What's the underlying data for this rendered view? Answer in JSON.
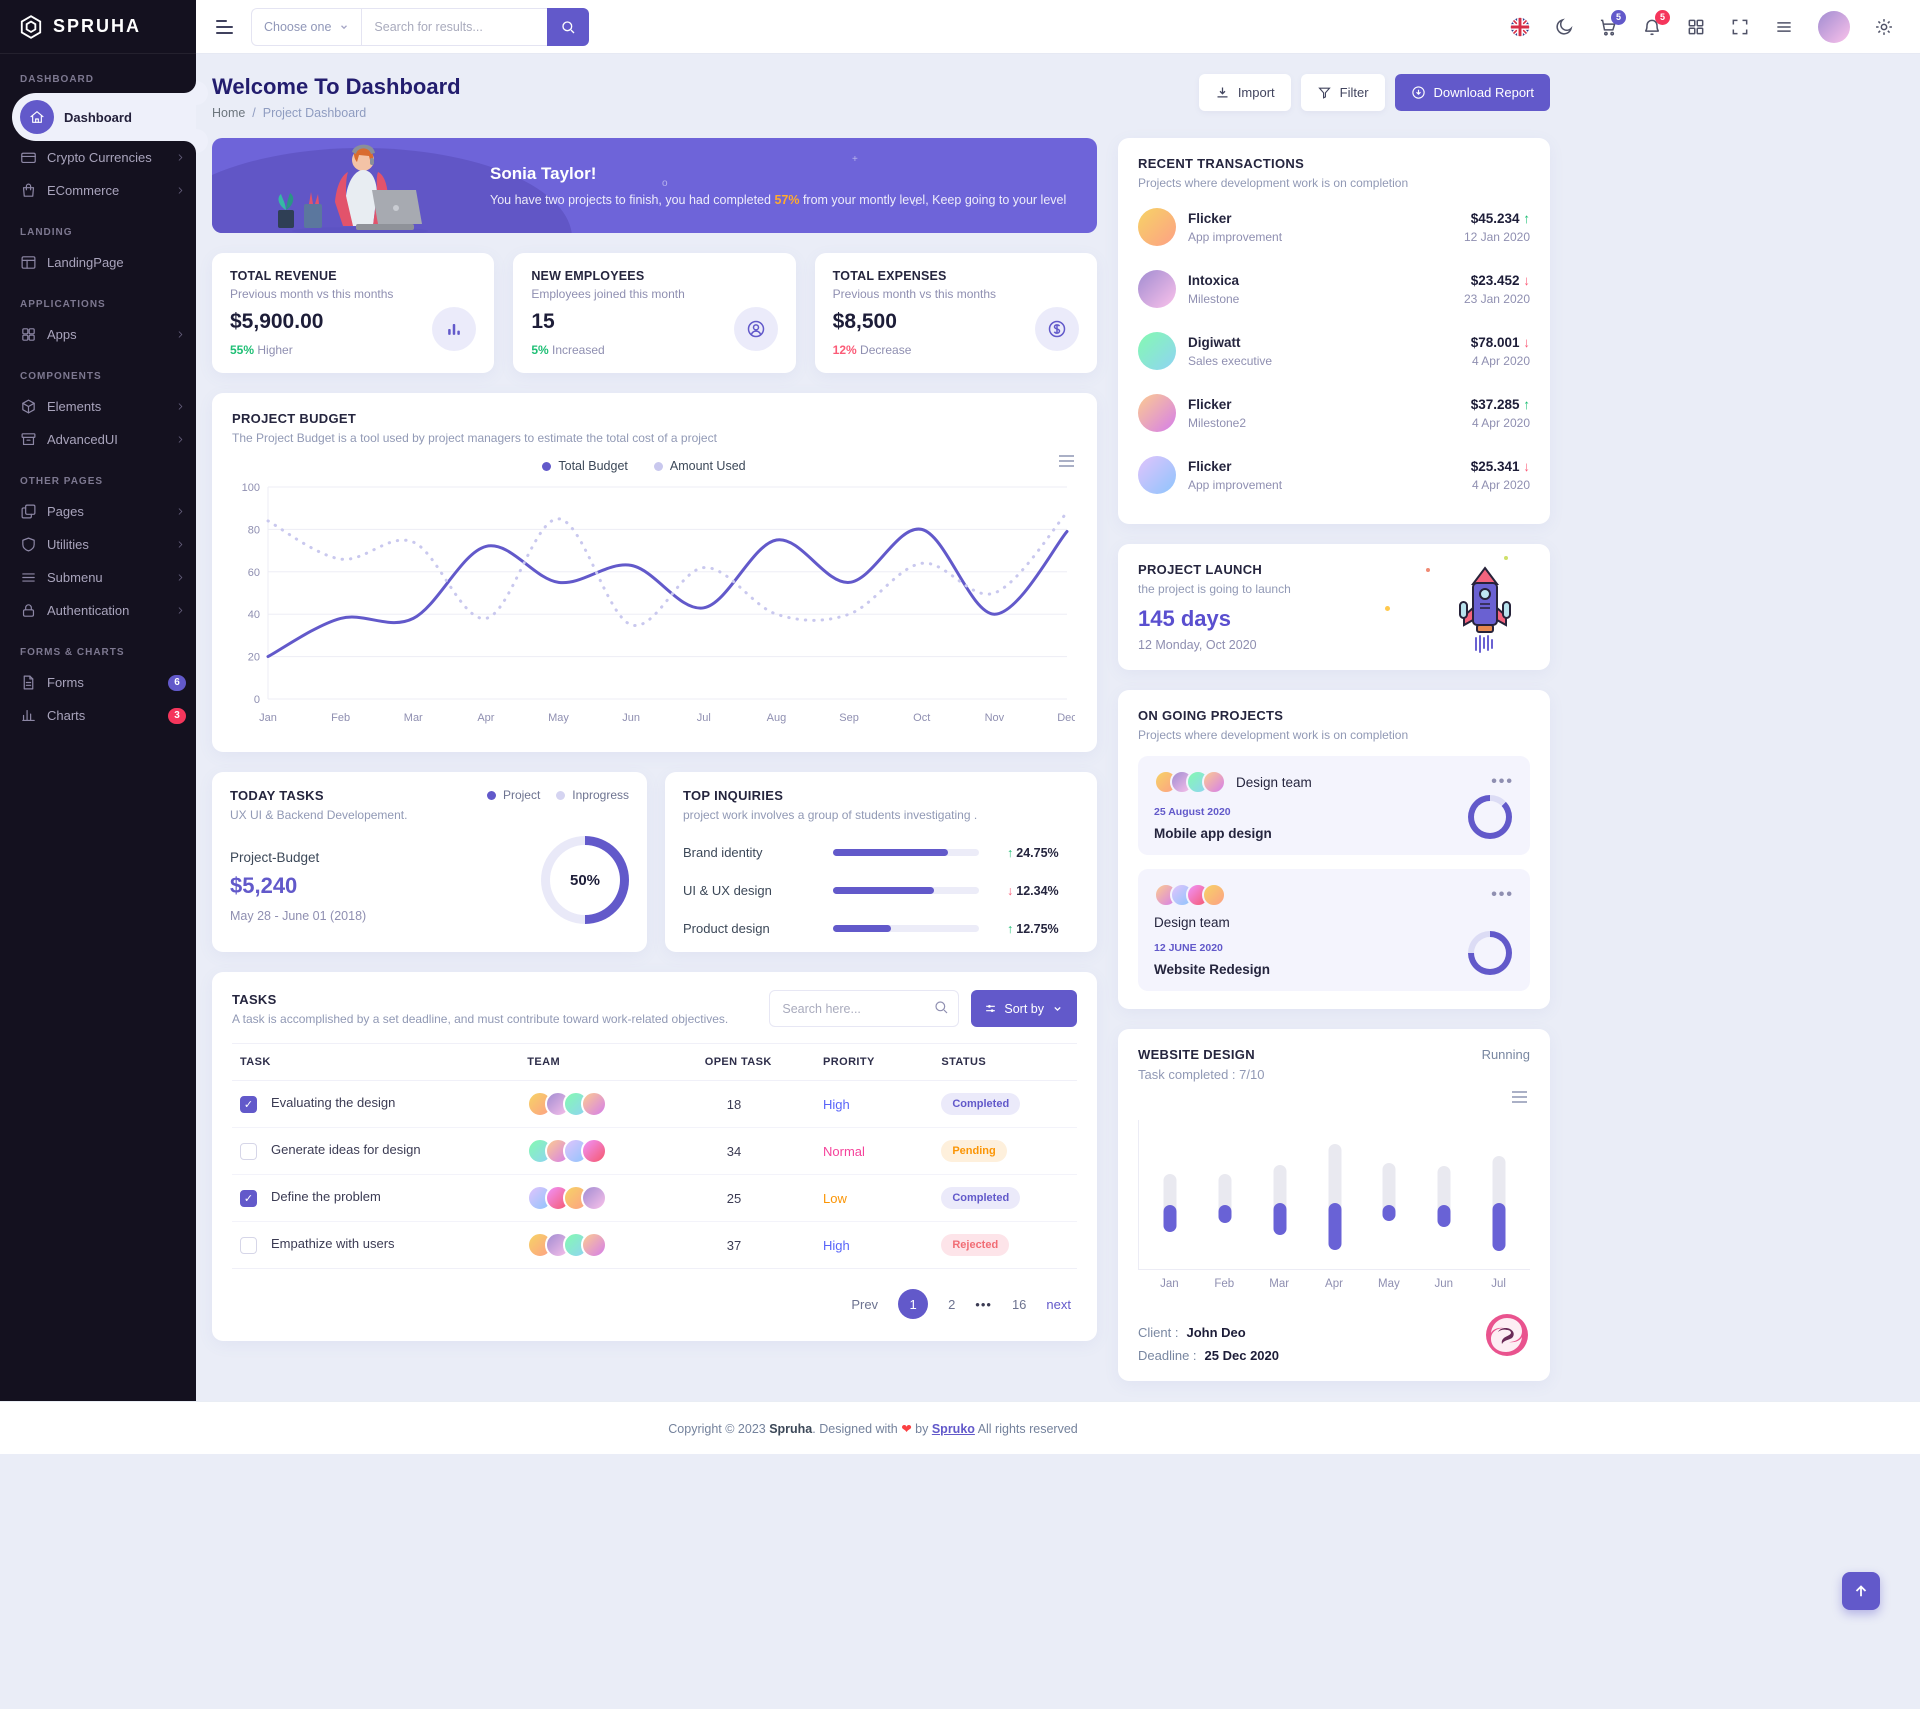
{
  "app": {
    "brand": "SPRUHA"
  },
  "colors": {
    "primary": "#6259ca",
    "green": "#1fbf75",
    "red": "#fb5b77",
    "orange": "#fb9505",
    "pink": "#f5439b",
    "badge_cart": "#6259ca",
    "badge_bell": "#f5365c"
  },
  "topbar": {
    "select_label": "Choose one",
    "search_placeholder": "Search for results...",
    "cart_badge": "5",
    "bell_badge": "5"
  },
  "sidebar": {
    "sections": [
      {
        "label": "DASHBOARD",
        "items": [
          {
            "label": "Dashboard",
            "icon": "home",
            "active": true
          },
          {
            "label": "Crypto Currencies",
            "icon": "wallet",
            "chevron": true
          },
          {
            "label": "ECommerce",
            "icon": "shop",
            "chevron": true
          }
        ]
      },
      {
        "label": "LANDING",
        "items": [
          {
            "label": "LandingPage",
            "icon": "layout"
          }
        ]
      },
      {
        "label": "APPLICATIONS",
        "items": [
          {
            "label": "Apps",
            "icon": "apps",
            "chevron": true
          }
        ]
      },
      {
        "label": "COMPONENTS",
        "items": [
          {
            "label": "Elements",
            "icon": "box",
            "chevron": true
          },
          {
            "label": "AdvancedUI",
            "icon": "archive",
            "chevron": true
          }
        ]
      },
      {
        "label": "OTHER PAGES",
        "items": [
          {
            "label": "Pages",
            "icon": "pages",
            "chevron": true
          },
          {
            "label": "Utilities",
            "icon": "shield",
            "chevron": true
          },
          {
            "label": "Submenu",
            "icon": "list",
            "chevron": true
          },
          {
            "label": "Authentication",
            "icon": "lock",
            "chevron": true
          }
        ]
      },
      {
        "label": "FORMS & CHARTS",
        "items": [
          {
            "label": "Forms",
            "icon": "file",
            "badge": "6",
            "badge_color": "#6259ca"
          },
          {
            "label": "Charts",
            "icon": "chart",
            "badge": "3",
            "badge_color": "#f5365c"
          }
        ]
      }
    ]
  },
  "page_header": {
    "title": "Welcome To Dashboard",
    "breadcrumb": {
      "home": "Home",
      "sep": "/",
      "current": "Project Dashboard"
    },
    "import_label": "Import",
    "filter_label": "Filter",
    "download_label": "Download Report"
  },
  "banner": {
    "title": "Sonia Taylor!",
    "text_before": "You have two projects to finish, you had completed ",
    "highlight": "57%",
    "text_after": " from your montly level, Keep going to your level"
  },
  "stats": [
    {
      "title": "TOTAL REVENUE",
      "subtitle": "Previous month vs this months",
      "value": "$5,900.00",
      "delta": "55%",
      "delta_text": " Higher",
      "direction": "up",
      "icon": "bar-chart"
    },
    {
      "title": "NEW EMPLOYEES",
      "subtitle": "Employees joined this month",
      "value": "15",
      "delta": "5%",
      "delta_text": " Increased",
      "direction": "up",
      "icon": "user"
    },
    {
      "title": "TOTAL EXPENSES",
      "subtitle": "Previous month vs this months",
      "value": "$8,500",
      "delta": "12%",
      "delta_text": " Decrease",
      "direction": "down",
      "icon": "dollar"
    }
  ],
  "project_budget": {
    "title": "PROJECT BUDGET",
    "subtitle": "The Project Budget is a tool used by project managers to estimate the total cost of a project"
  },
  "today_tasks": {
    "title": "TODAY TASKS",
    "legend": [
      {
        "label": "Project",
        "color": "#6259ca"
      },
      {
        "label": "Inprogress",
        "color": "#d5d4f1"
      }
    ],
    "subtitle": "UX UI & Backend Developement.",
    "budget_label": "Project-Budget",
    "budget_value": "$5,240",
    "date_range": "May 28 - June 01 (2018)",
    "donut_label": "50%",
    "donut_percent": 50
  },
  "top_inquiries": {
    "title": "TOP INQUIRIES",
    "subtitle": "project work involves a group of students investigating .",
    "items": [
      {
        "label": "Brand identity",
        "bar_percent": 79,
        "value": "24.75%",
        "direction": "up"
      },
      {
        "label": "UI & UX design",
        "bar_percent": 69,
        "value": "12.34%",
        "direction": "down"
      },
      {
        "label": "Product design",
        "bar_percent": 40,
        "value": "12.75%",
        "direction": "up"
      }
    ]
  },
  "tasks": {
    "title": "TASKS",
    "subtitle": "A task is accomplished by a set deadline, and must contribute toward work-related objectives.",
    "search_placeholder": "Search here...",
    "sort_label": "Sort by",
    "columns": [
      "TASK",
      "TEAM",
      "OPEN TASK",
      "PRORITY",
      "STATUS"
    ],
    "rows": [
      {
        "task": "Evaluating the design",
        "checked": true,
        "team_count": 4,
        "open": "18",
        "priority": "High",
        "status": "Completed"
      },
      {
        "task": "Generate ideas for design",
        "checked": false,
        "team_count": 4,
        "open": "34",
        "priority": "Normal",
        "status": "Pending"
      },
      {
        "task": "Define the problem",
        "checked": true,
        "team_count": 4,
        "open": "25",
        "priority": "Low",
        "status": "Completed"
      },
      {
        "task": "Empathize with users",
        "checked": false,
        "team_count": 4,
        "open": "37",
        "priority": "High",
        "status": "Rejected"
      }
    ],
    "pagination": {
      "prev": "Prev",
      "pages": [
        "1",
        "2",
        "•••",
        "16"
      ],
      "active": "1",
      "next": "next"
    }
  },
  "transactions": {
    "title": "RECENT TRANSACTIONS",
    "subtitle": "Projects where development work is on completion",
    "items": [
      {
        "name": "Flicker",
        "role": "App improvement",
        "amount": "$45.234",
        "direction": "up",
        "date": "12 Jan 2020"
      },
      {
        "name": "Intoxica",
        "role": "Milestone",
        "amount": "$23.452",
        "direction": "down",
        "date": "23 Jan 2020"
      },
      {
        "name": "Digiwatt",
        "role": "Sales executive",
        "amount": "$78.001",
        "direction": "down",
        "date": "4 Apr 2020"
      },
      {
        "name": "Flicker",
        "role": "Milestone2",
        "amount": "$37.285",
        "direction": "up",
        "date": "4 Apr 2020"
      },
      {
        "name": "Flicker",
        "role": "App improvement",
        "amount": "$25.341",
        "direction": "down",
        "date": "4 Apr 2020"
      }
    ]
  },
  "project_launch": {
    "title": "PROJECT LAUNCH",
    "subtitle": "the project is going to launch",
    "days": "145 days",
    "date": "12 Monday, Oct 2020"
  },
  "ongoing": {
    "title": "ON GOING PROJECTS",
    "subtitle": "Projects where development work is on completion",
    "projects": [
      {
        "team": "Design team",
        "date": "25 August 2020",
        "name": "Mobile app design",
        "percent": 87,
        "inline": true
      },
      {
        "team": "Design team",
        "date": "12 JUNE 2020",
        "name": "Website Redesign",
        "percent": 75,
        "inline": false
      }
    ]
  },
  "website_design": {
    "title": "WEBSITE DESIGN",
    "status": "Running",
    "completed": "Task completed : 7/10",
    "client_label": "Client :",
    "client": "John Deo",
    "deadline_label": "Deadline :",
    "deadline": "25 Dec 2020"
  },
  "footer": {
    "prefix": "Copyright © 2023 ",
    "brand": "Spruha",
    "mid": ". Designed with ",
    "heart": "❤",
    "by": " by ",
    "brand2": "Spruko",
    "suffix": " All rights reserved"
  },
  "chart_data": [
    {
      "id": "project_budget",
      "type": "line",
      "title": "PROJECT BUDGET",
      "x": [
        "Jan",
        "Feb",
        "Mar",
        "Apr",
        "May",
        "Jun",
        "Jul",
        "Aug",
        "Sep",
        "Oct",
        "Nov",
        "Dec"
      ],
      "ylim": [
        0,
        100
      ],
      "yticks": [
        0,
        20,
        40,
        60,
        80,
        100
      ],
      "grid": true,
      "legend_position": "top-center",
      "series": [
        {
          "name": "Total Budget",
          "style": "solid",
          "color": "#6259ca",
          "values": [
            20,
            38,
            38,
            72,
            55,
            63,
            43,
            75,
            55,
            80,
            40,
            79
          ]
        },
        {
          "name": "Amount Used",
          "style": "dotted",
          "color": "#c9c8ee",
          "values": [
            84,
            66,
            74,
            38,
            85,
            35,
            62,
            40,
            40,
            64,
            50,
            88
          ]
        }
      ]
    },
    {
      "id": "today_tasks_donut",
      "type": "pie",
      "title": "TODAY TASKS",
      "label": "50%",
      "values": [
        50,
        50
      ],
      "legend": [
        "Project",
        "Inprogress"
      ]
    },
    {
      "id": "website_design_bars",
      "type": "bar",
      "title": "WEBSITE DESIGN",
      "categories": [
        "Jan",
        "Feb",
        "Mar",
        "Apr",
        "May",
        "Jun",
        "Jul"
      ],
      "note": "top/fill/bottom are % offsets from plot top; gray range = top..bottom, purple fill = fill..bottom",
      "bars": [
        {
          "label": "Jan",
          "top": 36,
          "fill": 57,
          "bottom": 75
        },
        {
          "label": "Feb",
          "top": 36,
          "fill": 57,
          "bottom": 69
        },
        {
          "label": "Mar",
          "top": 30,
          "fill": 56,
          "bottom": 77
        },
        {
          "label": "Apr",
          "top": 16,
          "fill": 56,
          "bottom": 87
        },
        {
          "label": "May",
          "top": 29,
          "fill": 57,
          "bottom": 68
        },
        {
          "label": "Jun",
          "top": 31,
          "fill": 57,
          "bottom": 72
        },
        {
          "label": "Jul",
          "top": 24,
          "fill": 56,
          "bottom": 88
        }
      ]
    },
    {
      "id": "ongoing_donuts",
      "type": "pie",
      "title": "ON GOING PROJECTS",
      "values": [
        87,
        75
      ]
    }
  ]
}
